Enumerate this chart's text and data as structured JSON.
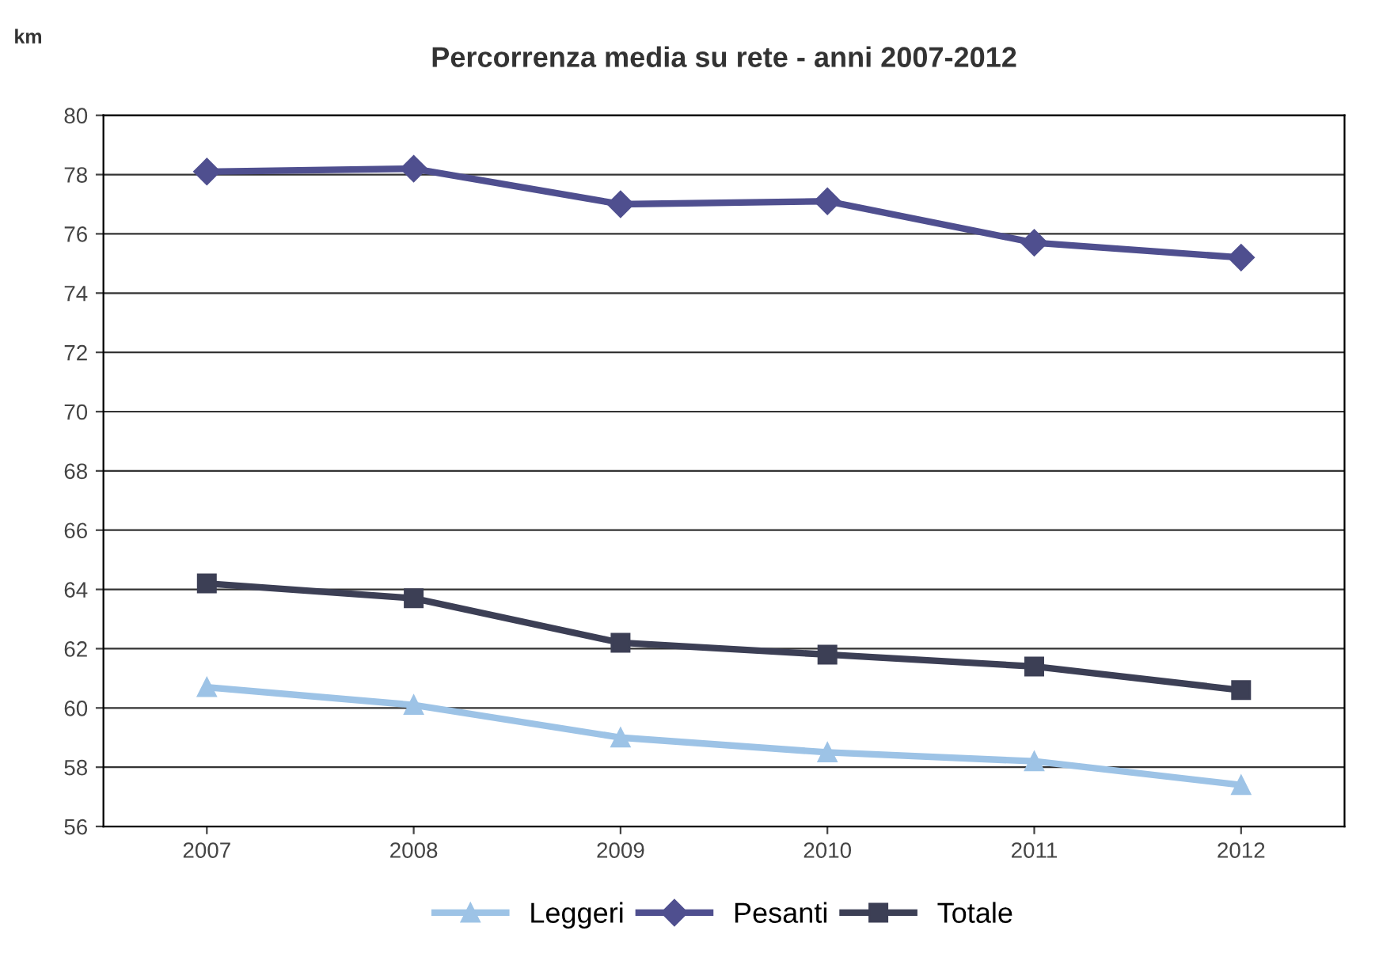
{
  "chart_data": {
    "type": "line",
    "title": "Percorrenza media su rete - anni 2007-2012",
    "ylabel": "km",
    "categories": [
      "2007",
      "2008",
      "2009",
      "2010",
      "2011",
      "2012"
    ],
    "series": [
      {
        "name": "Leggeri",
        "color": "#9dc3e6",
        "marker": "triangle",
        "values": [
          60.7,
          60.1,
          59.0,
          58.5,
          58.2,
          57.4
        ]
      },
      {
        "name": "Pesanti",
        "color": "#4f4f8f",
        "marker": "diamond",
        "values": [
          78.1,
          78.2,
          77.0,
          77.1,
          75.7,
          75.2
        ]
      },
      {
        "name": "Totale",
        "color": "#3c3f55",
        "marker": "square",
        "values": [
          64.2,
          63.7,
          62.2,
          61.8,
          61.4,
          60.6
        ]
      }
    ],
    "ylim": [
      56,
      80
    ],
    "yticks": [
      56,
      58,
      60,
      62,
      64,
      66,
      68,
      70,
      72,
      74,
      76,
      78,
      80
    ],
    "grid": "y",
    "legend": "bottom"
  }
}
